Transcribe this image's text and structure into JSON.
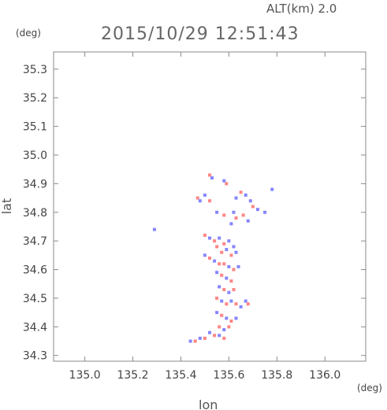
{
  "chart_data": {
    "type": "scatter",
    "title": "2015/10/29 12:51:43",
    "subtitle": "ALT(km) 2.0",
    "xlabel": "lon",
    "ylabel": "lat",
    "x_unit": "(deg)",
    "y_unit": "(deg)",
    "xlim": [
      134.87,
      136.17
    ],
    "ylim": [
      34.28,
      35.36
    ],
    "x_ticks": [
      "135.0",
      "135.2",
      "135.4",
      "135.6",
      "135.8",
      "136.0"
    ],
    "y_ticks": [
      "34.3",
      "34.4",
      "34.5",
      "34.6",
      "34.7",
      "34.8",
      "34.9",
      "35.0",
      "35.1",
      "35.2",
      "35.3"
    ],
    "grid": false,
    "colors": {
      "positive": "#ff7070",
      "negative": "#7070ff",
      "neutral": "#d8d8f0"
    },
    "series": [
      {
        "values": [
          [
            135.52,
            34.93,
            1
          ],
          [
            135.53,
            34.92,
            -1
          ],
          [
            135.58,
            34.91,
            -1
          ],
          [
            135.59,
            34.9,
            1
          ],
          [
            135.47,
            34.85,
            1
          ],
          [
            135.48,
            34.84,
            -1
          ],
          [
            135.5,
            34.86,
            -1
          ],
          [
            135.52,
            34.84,
            1
          ],
          [
            135.63,
            34.85,
            -1
          ],
          [
            135.65,
            34.87,
            1
          ],
          [
            135.67,
            34.86,
            -1
          ],
          [
            135.69,
            34.84,
            -1
          ],
          [
            135.7,
            34.82,
            1
          ],
          [
            135.72,
            34.81,
            -1
          ],
          [
            135.75,
            34.8,
            -1
          ],
          [
            135.78,
            34.88,
            -1
          ],
          [
            135.55,
            34.8,
            -1
          ],
          [
            135.58,
            34.79,
            1
          ],
          [
            135.62,
            34.8,
            -1
          ],
          [
            135.66,
            34.79,
            1
          ],
          [
            135.68,
            34.77,
            -1
          ],
          [
            135.61,
            34.76,
            -1
          ],
          [
            135.63,
            34.78,
            1
          ],
          [
            135.29,
            34.74,
            -1
          ],
          [
            135.5,
            34.72,
            1
          ],
          [
            135.52,
            34.71,
            -1
          ],
          [
            135.54,
            34.7,
            1
          ],
          [
            135.56,
            34.71,
            -1
          ],
          [
            135.58,
            34.69,
            1
          ],
          [
            135.6,
            34.7,
            -1
          ],
          [
            135.62,
            34.68,
            -1
          ],
          [
            135.55,
            34.68,
            1
          ],
          [
            135.57,
            34.66,
            1
          ],
          [
            135.59,
            34.67,
            -1
          ],
          [
            135.61,
            34.65,
            1
          ],
          [
            135.63,
            34.66,
            -1
          ],
          [
            135.5,
            34.65,
            -1
          ],
          [
            135.52,
            34.64,
            1
          ],
          [
            135.54,
            34.63,
            -1
          ],
          [
            135.56,
            34.62,
            1
          ],
          [
            135.58,
            34.62,
            1
          ],
          [
            135.6,
            34.61,
            -1
          ],
          [
            135.62,
            34.6,
            1
          ],
          [
            135.64,
            34.61,
            -1
          ],
          [
            135.55,
            34.59,
            -1
          ],
          [
            135.57,
            34.58,
            1
          ],
          [
            135.59,
            34.57,
            -1
          ],
          [
            135.61,
            34.56,
            1
          ],
          [
            135.56,
            34.54,
            -1
          ],
          [
            135.58,
            34.53,
            1
          ],
          [
            135.6,
            34.52,
            -1
          ],
          [
            135.62,
            34.53,
            1
          ],
          [
            135.55,
            34.5,
            1
          ],
          [
            135.57,
            34.49,
            -1
          ],
          [
            135.59,
            34.48,
            1
          ],
          [
            135.61,
            34.49,
            -1
          ],
          [
            135.63,
            34.48,
            1
          ],
          [
            135.65,
            34.47,
            -1
          ],
          [
            135.67,
            34.49,
            -1
          ],
          [
            135.68,
            34.48,
            1
          ],
          [
            135.55,
            34.45,
            -1
          ],
          [
            135.57,
            34.44,
            1
          ],
          [
            135.59,
            34.43,
            -1
          ],
          [
            135.61,
            34.42,
            1
          ],
          [
            135.63,
            34.43,
            -1
          ],
          [
            135.56,
            34.4,
            1
          ],
          [
            135.58,
            34.39,
            -1
          ],
          [
            135.6,
            34.4,
            1
          ],
          [
            135.52,
            34.38,
            -1
          ],
          [
            135.54,
            34.37,
            1
          ],
          [
            135.56,
            34.37,
            -1
          ],
          [
            135.58,
            34.36,
            1
          ],
          [
            135.44,
            34.35,
            -1
          ],
          [
            135.46,
            34.35,
            1
          ],
          [
            135.48,
            34.36,
            -1
          ],
          [
            135.5,
            34.36,
            1
          ]
        ]
      }
    ]
  }
}
